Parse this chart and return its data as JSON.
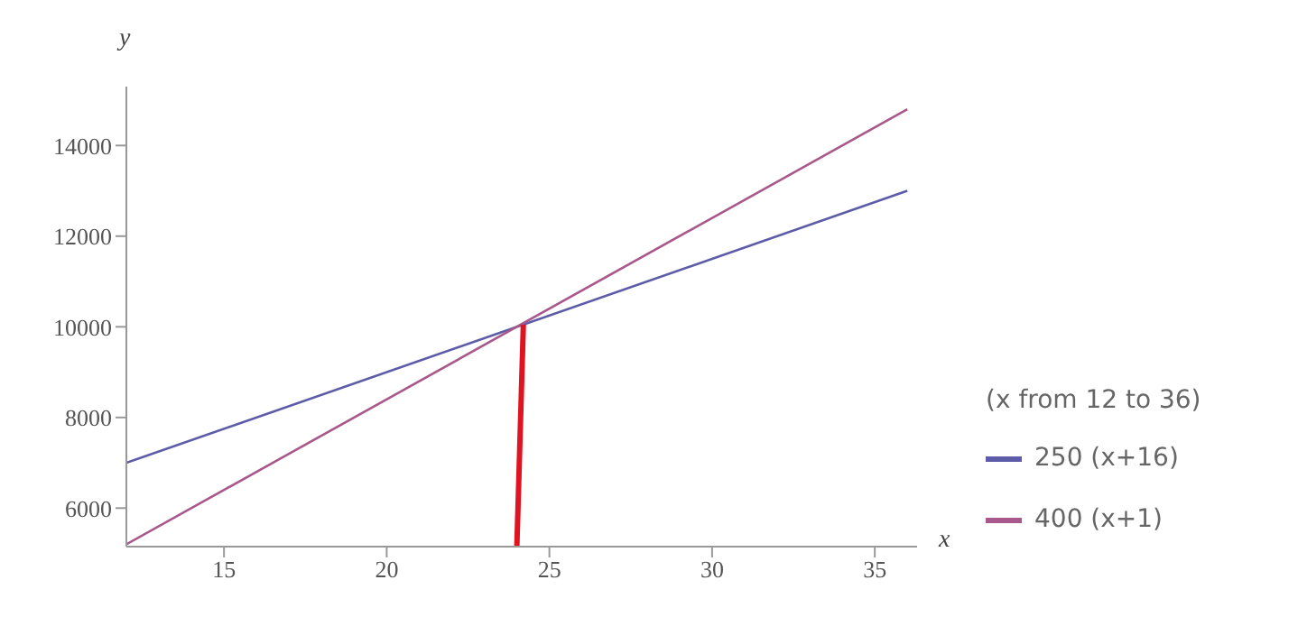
{
  "chart_data": {
    "type": "line",
    "xlabel": "x",
    "ylabel": "y",
    "legend_title": "(x from 12 to 36)",
    "legend": "bottom right",
    "grid": false,
    "marker": "none",
    "line_style": "solid",
    "xlim": [
      12,
      36.3
    ],
    "xticks": [
      15,
      20,
      25,
      30,
      35
    ],
    "ylim": [
      5150,
      15300
    ],
    "yticks": [
      6000,
      8000,
      10000,
      12000,
      14000
    ],
    "series": [
      {
        "name": "250 (x+16)",
        "color": "#5c5ca8",
        "x": [
          12,
          36
        ],
        "values": [
          7000,
          13000
        ]
      },
      {
        "name": "400 (x+1)",
        "color": "#a8588a",
        "x": [
          12,
          36
        ],
        "values": [
          5200,
          14800
        ]
      },
      {
        "color": "#e01420",
        "x": [
          24,
          24.2
        ],
        "values": [
          5150,
          10050
        ]
      }
    ]
  }
}
